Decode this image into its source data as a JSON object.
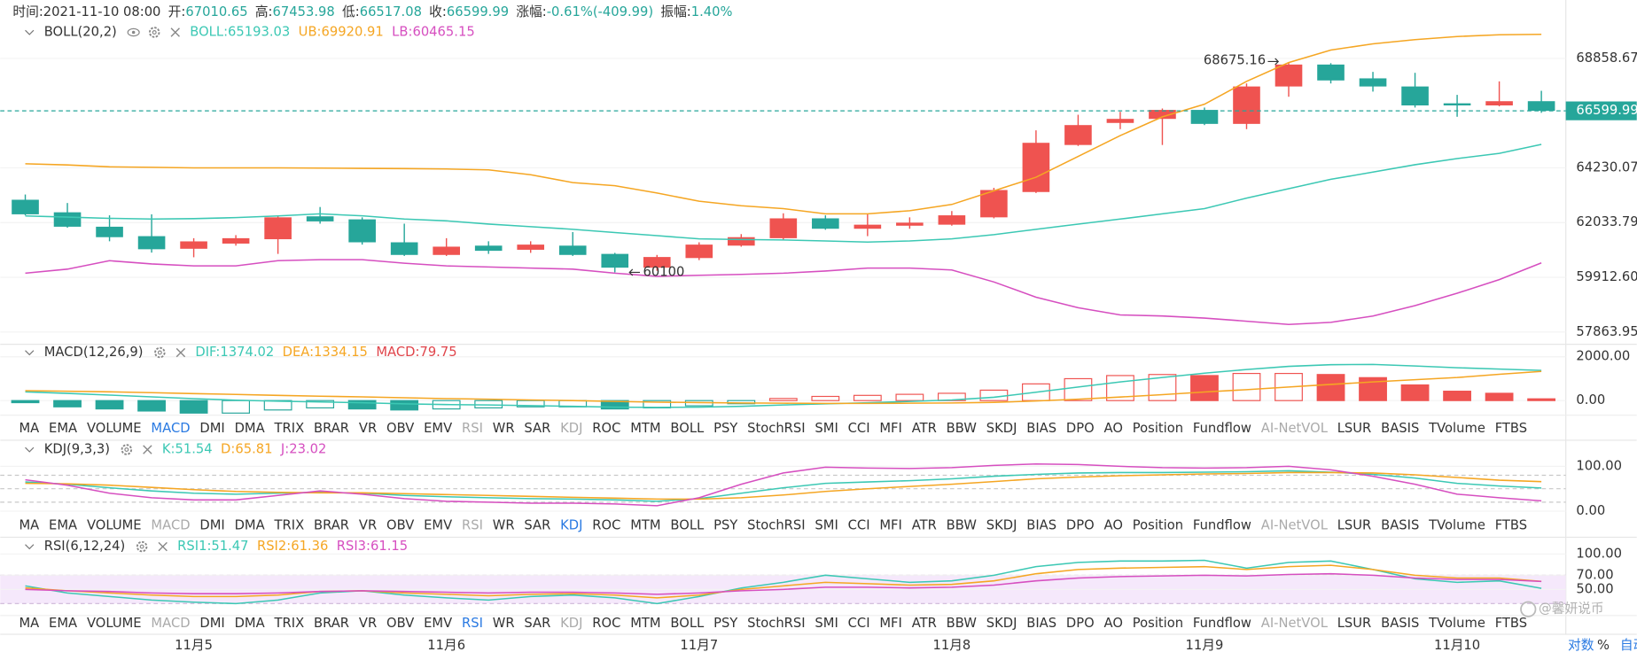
{
  "header": {
    "time_label": "时间:",
    "time": "2021-11-10 08:00",
    "open_label": "开:",
    "high_label": "高:",
    "low_label": "低:",
    "close_label": "收:",
    "change_label": "涨幅:",
    "change": "-0.61%(-409.99)",
    "amplitude_label": "振幅:",
    "amplitude": "1.40%"
  },
  "colors": {
    "up": "#ef5350",
    "down": "#26a69a",
    "text": "#333333",
    "active": "#2a7ae2",
    "disabled": "#aaaaaa"
  },
  "x_labels": [
    null,
    null,
    null,
    null,
    "11月5",
    null,
    null,
    null,
    null,
    null,
    "11月6",
    null,
    null,
    null,
    null,
    null,
    "11月7",
    null,
    null,
    null,
    null,
    null,
    "11月8",
    null,
    null,
    null,
    null,
    null,
    "11月9",
    null,
    null,
    null,
    null,
    null,
    "11月10",
    null,
    null
  ],
  "candles": [
    {
      "o": 62940,
      "h": 63150,
      "l": 62320,
      "c": 62360
    },
    {
      "o": 62440,
      "h": 62810,
      "l": 61830,
      "c": 61870
    },
    {
      "o": 61870,
      "h": 62320,
      "l": 61300,
      "c": 61460
    },
    {
      "o": 61500,
      "h": 62360,
      "l": 60860,
      "c": 60990
    },
    {
      "o": 61009,
      "h": 61420,
      "l": 60680,
      "c": 61296
    },
    {
      "o": 61210,
      "h": 61540,
      "l": 61130,
      "c": 61420
    },
    {
      "o": 61380,
      "h": 62320,
      "l": 60810,
      "c": 62240
    },
    {
      "o": 62280,
      "h": 62650,
      "l": 61990,
      "c": 62080
    },
    {
      "o": 62160,
      "h": 62240,
      "l": 61170,
      "c": 61260
    },
    {
      "o": 61260,
      "h": 61990,
      "l": 60730,
      "c": 60770
    },
    {
      "o": 60770,
      "h": 61420,
      "l": 60730,
      "c": 61090
    },
    {
      "o": 61130,
      "h": 61300,
      "l": 60810,
      "c": 60930
    },
    {
      "o": 60970,
      "h": 61300,
      "l": 60850,
      "c": 61170
    },
    {
      "o": 61130,
      "h": 61660,
      "l": 60730,
      "c": 60770
    },
    {
      "o": 60810,
      "h": 60850,
      "l": 60100,
      "c": 60280
    },
    {
      "o": 60280,
      "h": 60770,
      "l": 60160,
      "c": 60690
    },
    {
      "o": 60650,
      "h": 61260,
      "l": 60570,
      "c": 61170
    },
    {
      "o": 61130,
      "h": 61580,
      "l": 61090,
      "c": 61460
    },
    {
      "o": 61420,
      "h": 62400,
      "l": 61340,
      "c": 62200
    },
    {
      "o": 62200,
      "h": 62320,
      "l": 61750,
      "c": 61790
    },
    {
      "o": 61790,
      "h": 62360,
      "l": 61500,
      "c": 61950
    },
    {
      "o": 61910,
      "h": 62240,
      "l": 61790,
      "c": 62030
    },
    {
      "o": 61950,
      "h": 62490,
      "l": 61910,
      "c": 62320
    },
    {
      "o": 62240,
      "h": 63420,
      "l": 62200,
      "c": 63330
    },
    {
      "o": 63250,
      "h": 65780,
      "l": 63210,
      "c": 65260
    },
    {
      "o": 65170,
      "h": 66435,
      "l": 65130,
      "c": 66000
    },
    {
      "o": 66090,
      "h": 66560,
      "l": 65830,
      "c": 66260
    },
    {
      "o": 66260,
      "h": 66700,
      "l": 65170,
      "c": 66640
    },
    {
      "o": 66640,
      "h": 66740,
      "l": 66000,
      "c": 66050
    },
    {
      "o": 66050,
      "h": 67770,
      "l": 65830,
      "c": 67640
    },
    {
      "o": 67640,
      "h": 68675.16,
      "l": 67200,
      "c": 68590
    },
    {
      "o": 68590,
      "h": 68650,
      "l": 67770,
      "c": 67900
    },
    {
      "o": 67990,
      "h": 68270,
      "l": 67420,
      "c": 67640
    },
    {
      "o": 67640,
      "h": 68230,
      "l": 66740,
      "c": 66830
    },
    {
      "o": 66920,
      "h": 67280,
      "l": 66350,
      "c": 66830
    },
    {
      "o": 66830,
      "h": 67860,
      "l": 66790,
      "c": 67010
    },
    {
      "o": 67010.65,
      "h": 67453.98,
      "l": 66517.08,
      "c": 66599.99
    }
  ],
  "main": {
    "name": "BOLL(20,2)",
    "scale": "log",
    "ylim": [
      57415,
      71463
    ],
    "yticks": [
      68858.67,
      64230.07,
      62033.79,
      {
        "value": 59912.6,
        "label": "59912.60"
      },
      57863.95
    ],
    "lines": [
      {
        "label": "BOLL:",
        "color": "#3cc8b4",
        "values": [
          62296,
          62250,
          62200,
          62172,
          62190,
          62230,
          62296,
          62380,
          62300,
          62172,
          62100,
          61973,
          61870,
          61767,
          61640,
          61518,
          61394,
          61370,
          61353,
          61310,
          61271,
          61312,
          61394,
          61560,
          61767,
          61973,
          62172,
          62380,
          62586,
          63007,
          63385,
          63764,
          64054,
          64356,
          64611,
          64823,
          65193.03
        ]
      },
      {
        "label": "UB:",
        "color": "#f5a623",
        "values": [
          64396,
          64350,
          64273,
          64250,
          64230,
          64230,
          64230,
          64220,
          64210,
          64200,
          64184,
          64150,
          63950,
          63631,
          63507,
          63213,
          62882,
          62700,
          62586,
          62380,
          62380,
          62504,
          62751,
          63297,
          63846,
          64700,
          65561,
          66345,
          66883,
          67860,
          68676,
          69225,
          69500,
          69685,
          69825,
          69900,
          69920.91
        ]
      },
      {
        "label": "LB:",
        "color": "#d64fc0",
        "values": [
          60066,
          60224,
          60547,
          60424,
          60348,
          60348,
          60547,
          60589,
          60589,
          60450,
          60348,
          60306,
          60265,
          60224,
          60066,
          59948,
          59990,
          60024,
          60066,
          60150,
          60265,
          60265,
          60190,
          59735,
          59157,
          58764,
          58496,
          58455,
          58378,
          58262,
          58144,
          58222,
          58455,
          58842,
          59308,
          59825,
          60465.15
        ]
      }
    ]
  },
  "macd": {
    "name": "MACD(12,26,9)",
    "ylim": [
      -667,
      2571
    ],
    "yticks": [
      {
        "value": 2000,
        "label": "2000.00"
      },
      {
        "value": 0,
        "label": "0.00"
      }
    ],
    "lines": [
      {
        "label": "DIF:",
        "color": "#3cc8b4",
        "values": [
          400,
          330,
          250,
          170,
          90,
          20,
          -30,
          -60,
          -100,
          -150,
          -180,
          -200,
          -230,
          -260,
          -300,
          -310,
          -300,
          -260,
          -200,
          -150,
          -100,
          -40,
          30,
          150,
          380,
          620,
          850,
          1050,
          1250,
          1420,
          1560,
          1640,
          1650,
          1580,
          1500,
          1440,
          1374.02
        ]
      },
      {
        "label": "DEA:",
        "color": "#f5a623",
        "values": [
          450,
          430,
          400,
          360,
          320,
          280,
          240,
          200,
          170,
          130,
          90,
          60,
          30,
          0,
          -40,
          -70,
          -90,
          -110,
          -120,
          -130,
          -130,
          -120,
          -110,
          -80,
          -20,
          60,
          160,
          270,
          390,
          500,
          620,
          740,
          850,
          950,
          1050,
          1200,
          1334.15
        ]
      }
    ],
    "histogram": {
      "label": "MACD:",
      "color": "#e0454b",
      "values": [
        -95,
        -286,
        -381,
        -476,
        -571,
        -571,
        -428,
        -333,
        -381,
        -428,
        -381,
        -333,
        -286,
        -286,
        -381,
        -333,
        -238,
        -143,
        95,
        190,
        238,
        286,
        333,
        476,
        762,
        1000,
        1142,
        1190,
        1142,
        1238,
        1238,
        1190,
        1047,
        714,
        428,
        333,
        79.75
      ]
    }
  },
  "kdj": {
    "name": "KDJ(9,3,3)",
    "ylim": [
      -18.6,
      158.1
    ],
    "yticks": [
      {
        "value": 100,
        "label": "100.00"
      },
      {
        "value": 0,
        "label": "0.00"
      }
    ],
    "guides": [
      20,
      50,
      80
    ],
    "lines": [
      {
        "label": "K:",
        "color": "#3cc8b4",
        "values": [
          65,
          60,
          52,
          45,
          40,
          38,
          40,
          42,
          40,
          35,
          32,
          30,
          28,
          27,
          25,
          22,
          28,
          40,
          52,
          62,
          65,
          68,
          72,
          78,
          82,
          85,
          86,
          86,
          87,
          88,
          90,
          87,
          82,
          74,
          62,
          56,
          51.54
        ]
      },
      {
        "label": "D:",
        "color": "#f5a623",
        "values": [
          62,
          61,
          58,
          53,
          48,
          44,
          42,
          41,
          41,
          39,
          37,
          35,
          33,
          31,
          29,
          27,
          27,
          30,
          36,
          44,
          50,
          55,
          60,
          66,
          72,
          76,
          79,
          81,
          83,
          84,
          86,
          86,
          85,
          81,
          75,
          69,
          65.81
        ]
      },
      {
        "label": "J:",
        "color": "#d64fc0",
        "values": [
          70,
          58,
          40,
          30,
          25,
          25,
          35,
          45,
          38,
          28,
          22,
          20,
          18,
          18,
          16,
          12,
          30,
          60,
          85,
          98,
          96,
          95,
          97,
          102,
          105,
          104,
          100,
          97,
          96,
          97,
          100,
          92,
          78,
          60,
          38,
          30,
          23.02
        ]
      }
    ]
  },
  "rsi": {
    "name": "RSI(6,12,24)",
    "ylim": [
      13.2,
      123.5
    ],
    "yticks": [
      {
        "value": 100,
        "label": "100.00"
      },
      {
        "value": 70,
        "label": "70.00"
      },
      {
        "value": 50,
        "label": "50.00"
      }
    ],
    "band": [
      30,
      70
    ],
    "lines": [
      {
        "label": "RSI1:",
        "color": "#3cc8b4",
        "values": [
          55,
          45,
          40,
          35,
          32,
          30,
          35,
          45,
          48,
          42,
          38,
          35,
          40,
          42,
          38,
          30,
          40,
          52,
          60,
          70,
          65,
          60,
          62,
          70,
          82,
          88,
          90,
          90,
          91,
          80,
          88,
          90,
          78,
          65,
          60,
          62,
          51.47
        ]
      },
      {
        "label": "RSI2:",
        "color": "#f5a623",
        "values": [
          52,
          48,
          45,
          42,
          40,
          40,
          42,
          47,
          48,
          45,
          43,
          41,
          43,
          44,
          42,
          38,
          42,
          50,
          55,
          60,
          58,
          56,
          57,
          62,
          72,
          78,
          80,
          81,
          82,
          78,
          82,
          84,
          78,
          70,
          66,
          66,
          61.36
        ]
      },
      {
        "label": "RSI3:",
        "color": "#d64fc0",
        "values": [
          50,
          48,
          47,
          45,
          44,
          44,
          45,
          47,
          48,
          47,
          46,
          45,
          46,
          46,
          45,
          43,
          45,
          48,
          50,
          53,
          53,
          52,
          53,
          56,
          62,
          66,
          68,
          69,
          70,
          69,
          71,
          72,
          70,
          66,
          64,
          64,
          61.15
        ]
      }
    ]
  },
  "tabs": {
    "items": [
      "MA",
      "EMA",
      "VOLUME",
      "MACD",
      "DMI",
      "DMA",
      "TRIX",
      "BRAR",
      "VR",
      "OBV",
      "EMV",
      "RSI",
      "WR",
      "SAR",
      "KDJ",
      "ROC",
      "MTM",
      "BOLL",
      "PSY",
      "StochRSI",
      "SMI",
      "CCI",
      "MFI",
      "ATR",
      "BBW",
      "SKDJ",
      "BIAS",
      "DPO",
      "AO",
      "Position",
      "Fundflow",
      "AI-NetVOL",
      "LSUR",
      "BASIS",
      "TVolume",
      "FTBS"
    ],
    "disabled": [
      31
    ],
    "rows": [
      {
        "active": 3
      },
      {
        "active": 14
      },
      {
        "active": 11
      }
    ]
  },
  "footer": {
    "buttons": [
      "对数",
      "%",
      "自动"
    ],
    "active": [
      0,
      2
    ]
  },
  "watermark": "@馨妍说币"
}
